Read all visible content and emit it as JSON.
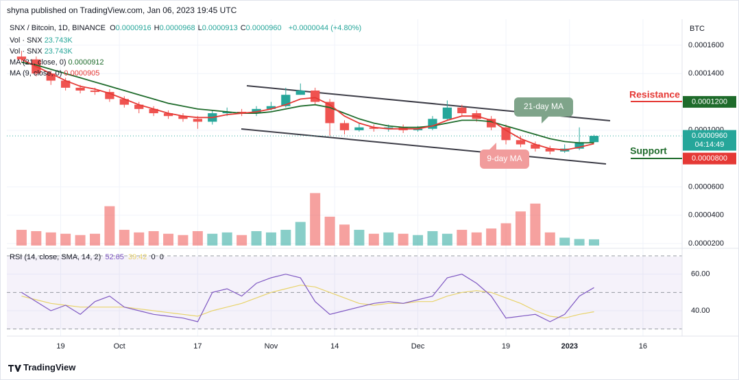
{
  "header": {
    "publisher": "shyna published on TradingView.com, Jan 06, 2023 19:45 UTC"
  },
  "footer": {
    "brand": "TradingView"
  },
  "chart_data": [
    {
      "type": "candlestick",
      "symbol": "SNX / Bitcoin, 1D, BINANCE",
      "ohlc_legend": [
        {
          "key": "O",
          "value": "0.0000916"
        },
        {
          "key": "H",
          "value": "0.0000968"
        },
        {
          "key": "L",
          "value": "0.0000913"
        },
        {
          "key": "C",
          "value": "0.0000960"
        }
      ],
      "change": "+0.0000044 (+4.80%)",
      "currency": "BTC",
      "x": [
        2,
        5,
        8,
        11,
        14,
        17,
        20,
        23,
        26,
        29,
        32,
        35,
        38,
        41,
        44,
        47,
        50,
        53,
        56,
        59,
        62,
        65,
        68,
        71,
        74,
        77,
        80,
        83,
        86,
        89,
        92,
        95,
        98,
        101,
        104,
        107,
        110,
        113,
        116,
        119
      ],
      "xlim": [
        -1,
        137
      ],
      "xticks": [
        {
          "value": 10,
          "label": "19"
        },
        {
          "value": 22,
          "label": "Oct"
        },
        {
          "value": 38,
          "label": "17"
        },
        {
          "value": 53,
          "label": "Nov"
        },
        {
          "value": 66,
          "label": "14"
        },
        {
          "value": 83,
          "label": "Dec"
        },
        {
          "value": 101,
          "label": "19"
        },
        {
          "value": 114,
          "label": "2023"
        },
        {
          "value": 129,
          "label": "16"
        }
      ],
      "open": [
        0.000152,
        0.00015,
        0.00014,
        0.000135,
        0.00013,
        0.000128,
        0.000127,
        0.000122,
        0.000118,
        0.000115,
        0.000112,
        0.00011,
        0.000108,
        0.000106,
        0.000112,
        0.000113,
        0.000112,
        0.000115,
        0.000117,
        0.000125,
        0.000128,
        0.00012,
        0.000105,
        0.0001,
        0.000102,
        0.000101,
        0.000102,
        0.0001,
        0.000101,
        0.000108,
        0.000116,
        0.000112,
        0.000108,
        0.000102,
        9.3e-05,
        9e-05,
        8.7e-05,
        8.5e-05,
        8.7e-05,
        9.16e-05
      ],
      "high": [
        0.000156,
        0.000152,
        0.000142,
        0.000137,
        0.000132,
        0.00013,
        0.000129,
        0.000124,
        0.00012,
        0.000117,
        0.000114,
        0.000112,
        0.00011,
        0.000114,
        0.000116,
        0.000115,
        0.000117,
        0.00012,
        0.00013,
        0.000133,
        0.00013,
        0.000122,
        0.000107,
        0.000105,
        0.000104,
        0.000104,
        0.000104,
        0.000103,
        0.00011,
        0.000121,
        0.000118,
        0.000114,
        0.00011,
        0.000104,
        9.6e-05,
        9.2e-05,
        8.9e-05,
        9e-05,
        0.000102,
        9.68e-05
      ],
      "low": [
        0.000148,
        0.000138,
        0.000132,
        0.000128,
        0.000126,
        0.000125,
        0.00012,
        0.000116,
        0.000112,
        0.00011,
        0.000108,
        0.000106,
        0.000101,
        0.000104,
        0.00011,
        0.00011,
        0.00011,
        0.000114,
        0.000116,
        0.000125,
        0.000118,
        9.6e-05,
        9.7e-05,
        9.9e-05,
        9.9e-05,
        9.9e-05,
        9.8e-05,
        9.9e-05,
        0.0001,
        0.000107,
        0.00011,
        0.000106,
        0.0001,
        9e-05,
        8.8e-05,
        8.5e-05,
        8.3e-05,
        8.4e-05,
        8.6e-05,
        9.13e-05
      ],
      "close": [
        0.00015,
        0.00014,
        0.000135,
        0.00013,
        0.000128,
        0.000127,
        0.000122,
        0.000118,
        0.000115,
        0.000112,
        0.00011,
        0.000108,
        0.000106,
        0.000112,
        0.000113,
        0.000112,
        0.000115,
        0.000117,
        0.000125,
        0.000128,
        0.00012,
        0.000105,
        0.0001,
        0.000102,
        0.000101,
        0.000102,
        0.0001,
        0.000101,
        0.000108,
        0.000116,
        0.000112,
        0.000108,
        0.000102,
        9.3e-05,
        9e-05,
        8.7e-05,
        8.5e-05,
        8.7e-05,
        9.16e-05,
        9.6e-05
      ],
      "up_color": "#26a69a",
      "down_color": "#ef5350",
      "ylim": [
        1.76e-05,
        0.0001774
      ],
      "yticks": [
        {
          "value": 0.00016,
          "label": "0.0001600"
        },
        {
          "value": 0.00014,
          "label": "0.0001400"
        },
        {
          "value": 0.0001,
          "label": "0.0001000"
        },
        {
          "value": 6e-05,
          "label": "0.0000600"
        },
        {
          "value": 4e-05,
          "label": "0.0000400"
        },
        {
          "value": 2e-05,
          "label": "0.0000200"
        }
      ],
      "grid": true,
      "series": [
        {
          "name": "MA (21, close, 0)",
          "value_label": "0.0000912",
          "color": "#1e6b2b",
          "values": [
            0.000148,
            0.000146,
            0.000143,
            0.00014,
            0.000137,
            0.000134,
            0.000131,
            0.000128,
            0.000125,
            0.000122,
            0.000119,
            0.000117,
            0.000115,
            0.000114,
            0.000113,
            0.000112,
            0.000112,
            0.000113,
            0.000115,
            0.000117,
            0.000118,
            0.000116,
            0.000112,
            0.000108,
            0.000105,
            0.000103,
            0.000102,
            0.000102,
            0.000103,
            0.000105,
            0.000107,
            0.000107,
            0.000106,
            0.000103,
            0.0001,
            9.7e-05,
            9.4e-05,
            9.2e-05,
            9.1e-05,
            9.12e-05
          ]
        },
        {
          "name": "MA (9, close, 0)",
          "value_label": "0.0000905",
          "color": "#e53935",
          "values": [
            0.00015,
            0.000145,
            0.00014,
            0.000135,
            0.000131,
            0.000129,
            0.000126,
            0.000122,
            0.000118,
            0.000115,
            0.000112,
            0.00011,
            0.000109,
            0.000109,
            0.000111,
            0.000112,
            0.000113,
            0.000115,
            0.000118,
            0.000122,
            0.000123,
            0.000118,
            0.00011,
            0.000105,
            0.000102,
            0.000101,
            0.000101,
            0.000101,
            0.000103,
            0.000107,
            0.00011,
            0.00011,
            0.000107,
            0.0001,
            9.4e-05,
            9e-05,
            8.7e-05,
            8.6e-05,
            8.8e-05,
            9.05e-05
          ]
        }
      ],
      "volume": {
        "name": "Vol · SNX",
        "value_label": "23.743K",
        "vlim": [
          0,
          230
        ],
        "values": [
          60,
          55,
          50,
          45,
          40,
          45,
          150,
          60,
          50,
          55,
          45,
          40,
          55,
          45,
          50,
          40,
          55,
          50,
          60,
          90,
          200,
          110,
          80,
          60,
          45,
          50,
          45,
          40,
          55,
          45,
          60,
          50,
          65,
          85,
          130,
          160,
          50,
          30,
          25,
          23.743
        ]
      },
      "price_tags": [
        {
          "value": 0.00012,
          "label": "0.0001200",
          "color": "#1e6b2b"
        },
        {
          "value": 9.6e-05,
          "label": "0.0000960",
          "sublabel": "04:14:49",
          "color": "#26a69a"
        },
        {
          "value": 8e-05,
          "label": "0.0000800",
          "color": "#e53935"
        }
      ],
      "annotations": [
        "21-day MA",
        "9-day MA",
        "Resistance",
        "Support"
      ]
    },
    {
      "type": "line",
      "title": "RSI (14, close, SMA, 14, 2)",
      "extra_labels": [
        "0",
        "0"
      ],
      "ylim": [
        28,
        73
      ],
      "yticks": [
        {
          "value": 60,
          "label": "60.00"
        },
        {
          "value": 40,
          "label": "40.00"
        }
      ],
      "bands": [
        30,
        50,
        70
      ],
      "band_color": "#7e57c2",
      "series": [
        {
          "value_label": "52.65",
          "color": "#7e57c2",
          "values": [
            50,
            45,
            40,
            43,
            38,
            45,
            48,
            42,
            40,
            38,
            37,
            36,
            34,
            50,
            52,
            48,
            55,
            58,
            60,
            58,
            45,
            38,
            40,
            42,
            44,
            45,
            44,
            46,
            48,
            58,
            60,
            55,
            48,
            36,
            37,
            38,
            34,
            38,
            48,
            52.65
          ]
        },
        {
          "value_label": "39.42",
          "color": "#e8d36a",
          "values": [
            48,
            46,
            44,
            43,
            42,
            42,
            42,
            42,
            41,
            40,
            39,
            38,
            37,
            40,
            42,
            44,
            47,
            50,
            52,
            54,
            53,
            50,
            47,
            44,
            43,
            44,
            44,
            45,
            45,
            48,
            50,
            51,
            50,
            47,
            44,
            40,
            37,
            36,
            38,
            39.42
          ]
        }
      ]
    }
  ]
}
